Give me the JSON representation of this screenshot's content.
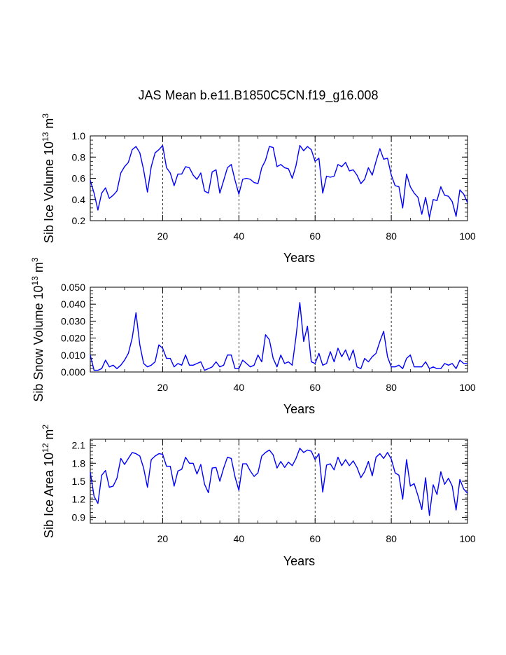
{
  "figure": {
    "title": "JAS Mean b.e11.B1850C5CN.f19_g16.008"
  },
  "colors": {
    "series": "#0000ff",
    "axis": "#000000",
    "grid": "#000000"
  },
  "chart_data": [
    {
      "type": "line",
      "ylabel_main": "Sib Ice Volume 10",
      "ylabel_exp": "13",
      "ylabel_unit": " m",
      "ylabel_unit_exp": "3",
      "xlabel": "Years",
      "xlim": [
        1,
        100
      ],
      "ylim": [
        0.2,
        1.0
      ],
      "xticks": [
        20,
        40,
        60,
        80,
        100
      ],
      "xtick_labels": [
        "20",
        "40",
        "60",
        "80",
        "100"
      ],
      "yticks": [
        0.2,
        0.4,
        0.6,
        0.8,
        1.0
      ],
      "ytick_labels": [
        "0.2",
        "0.4",
        "0.6",
        "0.8",
        "1.0"
      ],
      "grid_x": [
        20,
        40,
        60,
        80
      ],
      "series": [
        {
          "name": "Sib Ice Volume",
          "values": [
            0.58,
            0.46,
            0.3,
            0.46,
            0.51,
            0.41,
            0.44,
            0.48,
            0.65,
            0.71,
            0.75,
            0.87,
            0.9,
            0.84,
            0.68,
            0.47,
            0.71,
            0.84,
            0.87,
            0.91,
            0.7,
            0.65,
            0.53,
            0.64,
            0.64,
            0.71,
            0.7,
            0.63,
            0.59,
            0.65,
            0.48,
            0.46,
            0.66,
            0.68,
            0.46,
            0.58,
            0.7,
            0.73,
            0.58,
            0.45,
            0.59,
            0.6,
            0.59,
            0.56,
            0.55,
            0.7,
            0.77,
            0.9,
            0.89,
            0.71,
            0.73,
            0.7,
            0.69,
            0.6,
            0.72,
            0.91,
            0.86,
            0.9,
            0.87,
            0.76,
            0.79,
            0.46,
            0.62,
            0.61,
            0.62,
            0.73,
            0.71,
            0.75,
            0.67,
            0.68,
            0.63,
            0.55,
            0.59,
            0.7,
            0.63,
            0.76,
            0.88,
            0.78,
            0.79,
            0.63,
            0.53,
            0.52,
            0.32,
            0.64,
            0.52,
            0.46,
            0.42,
            0.26,
            0.42,
            0.23,
            0.4,
            0.39,
            0.52,
            0.44,
            0.43,
            0.38,
            0.24,
            0.49,
            0.45,
            0.37
          ]
        }
      ]
    },
    {
      "type": "line",
      "ylabel_main": "Sib Snow Volume 10",
      "ylabel_exp": "13",
      "ylabel_unit": " m",
      "ylabel_unit_exp": "3",
      "xlabel": "Years",
      "xlim": [
        1,
        100
      ],
      "ylim": [
        0.0,
        0.05
      ],
      "xticks": [
        20,
        40,
        60,
        80,
        100
      ],
      "xtick_labels": [
        "20",
        "40",
        "60",
        "80",
        "100"
      ],
      "yticks": [
        0.0,
        0.01,
        0.02,
        0.03,
        0.04,
        0.05
      ],
      "ytick_labels": [
        "0.000",
        "0.010",
        "0.020",
        "0.030",
        "0.040",
        "0.050"
      ],
      "grid_x": [
        20,
        40,
        60,
        80
      ],
      "series": [
        {
          "name": "Sib Snow Volume",
          "values": [
            0.01,
            0.001,
            0.001,
            0.002,
            0.007,
            0.003,
            0.004,
            0.002,
            0.004,
            0.007,
            0.011,
            0.02,
            0.035,
            0.016,
            0.005,
            0.003,
            0.004,
            0.006,
            0.016,
            0.014,
            0.008,
            0.008,
            0.003,
            0.005,
            0.004,
            0.01,
            0.004,
            0.004,
            0.005,
            0.006,
            0.001,
            0.002,
            0.003,
            0.006,
            0.003,
            0.004,
            0.01,
            0.01,
            0.002,
            0.002,
            0.007,
            0.005,
            0.003,
            0.004,
            0.01,
            0.006,
            0.022,
            0.019,
            0.008,
            0.003,
            0.01,
            0.005,
            0.006,
            0.004,
            0.021,
            0.041,
            0.018,
            0.027,
            0.006,
            0.005,
            0.011,
            0.004,
            0.005,
            0.012,
            0.006,
            0.014,
            0.009,
            0.013,
            0.007,
            0.013,
            0.003,
            0.002,
            0.008,
            0.006,
            0.009,
            0.011,
            0.018,
            0.024,
            0.009,
            0.003,
            0.003,
            0.004,
            0.002,
            0.008,
            0.01,
            0.003,
            0.003,
            0.003,
            0.006,
            0.002,
            0.003,
            0.002,
            0.002,
            0.005,
            0.004,
            0.005,
            0.002,
            0.007,
            0.005,
            0.005
          ]
        }
      ]
    },
    {
      "type": "line",
      "ylabel_main": "Sib Ice Area 10",
      "ylabel_exp": "12",
      "ylabel_unit": " m",
      "ylabel_unit_exp": "2",
      "xlabel": "Years",
      "xlim": [
        1,
        100
      ],
      "ylim": [
        0.8,
        2.2
      ],
      "xticks": [
        20,
        40,
        60,
        80,
        100
      ],
      "xtick_labels": [
        "20",
        "40",
        "60",
        "80",
        "100"
      ],
      "yticks": [
        0.9,
        1.2,
        1.5,
        1.8,
        2.1
      ],
      "ytick_labels": [
        "0.9",
        "1.2",
        "1.5",
        "1.8",
        "2.1"
      ],
      "grid_x": [
        20,
        40,
        60,
        80
      ],
      "series": [
        {
          "name": "Sib Ice Area",
          "values": [
            1.65,
            1.25,
            1.13,
            1.6,
            1.68,
            1.4,
            1.42,
            1.55,
            1.88,
            1.78,
            1.88,
            1.98,
            1.96,
            1.92,
            1.72,
            1.4,
            1.86,
            1.92,
            1.96,
            1.95,
            1.75,
            1.75,
            1.42,
            1.67,
            1.7,
            1.9,
            1.8,
            1.8,
            1.62,
            1.78,
            1.45,
            1.31,
            1.72,
            1.73,
            1.5,
            1.72,
            1.9,
            1.88,
            1.57,
            1.35,
            1.79,
            1.79,
            1.67,
            1.58,
            1.64,
            1.92,
            1.98,
            2.02,
            1.94,
            1.72,
            1.83,
            1.73,
            1.82,
            1.76,
            1.88,
            2.05,
            1.98,
            2.02,
            2.0,
            1.86,
            1.96,
            1.32,
            1.77,
            1.79,
            1.69,
            1.9,
            1.76,
            1.86,
            1.76,
            1.84,
            1.73,
            1.56,
            1.66,
            1.83,
            1.59,
            1.9,
            1.96,
            1.88,
            1.98,
            1.87,
            1.64,
            1.6,
            1.2,
            1.86,
            1.42,
            1.46,
            1.26,
            1.03,
            1.56,
            0.93,
            1.44,
            1.28,
            1.66,
            1.45,
            1.55,
            1.42,
            1.02,
            1.53,
            1.37,
            1.3
          ]
        }
      ]
    }
  ]
}
